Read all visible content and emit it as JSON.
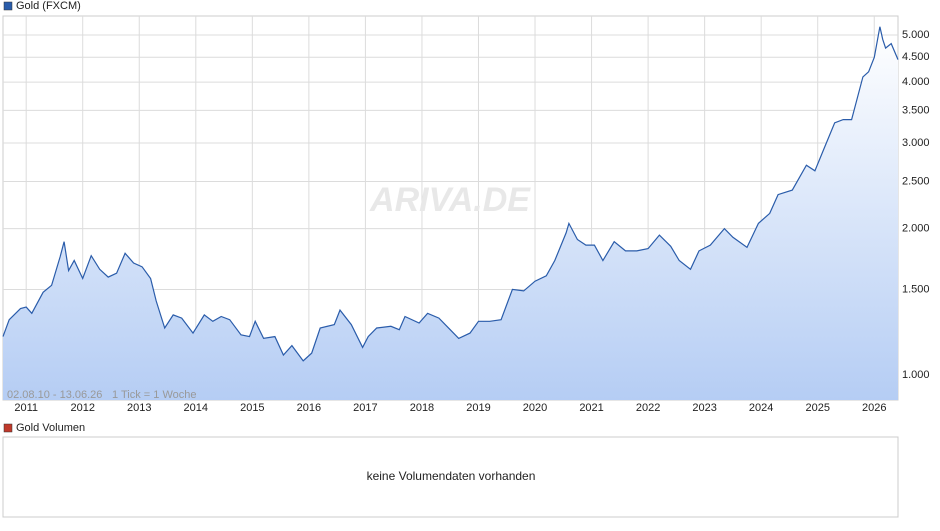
{
  "chart_data": {
    "type": "line",
    "watermark": "ARIVA.DE",
    "range": "02.08.10 - 13.06.26",
    "tick_note": "1 Tick = 1 Woche",
    "log_scale": true,
    "grid": true,
    "xlim": [
      2010.59,
      2026.42
    ],
    "xticks": [
      2011,
      2012,
      2013,
      2014,
      2015,
      2016,
      2017,
      2018,
      2019,
      2020,
      2021,
      2022,
      2023,
      2024,
      2025,
      2026
    ],
    "ylim": [
      889,
      5470
    ],
    "yticks": [
      {
        "value": 1000,
        "label": "1.000"
      },
      {
        "value": 1500,
        "label": "1.500"
      },
      {
        "value": 2000,
        "label": "2.000"
      },
      {
        "value": 2500,
        "label": "2.500"
      },
      {
        "value": 3000,
        "label": "3.000"
      },
      {
        "value": 3500,
        "label": "3.500"
      },
      {
        "value": 4000,
        "label": "4.000"
      },
      {
        "value": 4500,
        "label": "4.500"
      },
      {
        "value": 5000,
        "label": "5.000"
      }
    ],
    "series": [
      {
        "name": "Gold (FXCM)",
        "color": "#2a5caa",
        "x": [
          2010.59,
          2010.7,
          2010.9,
          2011.0,
          2011.1,
          2011.3,
          2011.45,
          2011.6,
          2011.67,
          2011.75,
          2011.85,
          2012.0,
          2012.15,
          2012.3,
          2012.45,
          2012.6,
          2012.75,
          2012.9,
          2013.05,
          2013.2,
          2013.3,
          2013.45,
          2013.6,
          2013.75,
          2013.95,
          2014.15,
          2014.3,
          2014.45,
          2014.6,
          2014.8,
          2014.95,
          2015.05,
          2015.2,
          2015.4,
          2015.55,
          2015.7,
          2015.9,
          2016.05,
          2016.2,
          2016.45,
          2016.55,
          2016.75,
          2016.95,
          2017.05,
          2017.2,
          2017.45,
          2017.6,
          2017.7,
          2017.95,
          2018.1,
          2018.3,
          2018.5,
          2018.65,
          2018.85,
          2019.0,
          2019.2,
          2019.4,
          2019.6,
          2019.8,
          2020.0,
          2020.2,
          2020.35,
          2020.55,
          2020.6,
          2020.75,
          2020.9,
          2021.05,
          2021.2,
          2021.4,
          2021.6,
          2021.8,
          2022.0,
          2022.2,
          2022.4,
          2022.55,
          2022.75,
          2022.9,
          2023.1,
          2023.35,
          2023.5,
          2023.75,
          2023.95,
          2024.15,
          2024.3,
          2024.55,
          2024.8,
          2024.95,
          2025.1,
          2025.3,
          2025.45,
          2025.6,
          2025.8,
          2025.9,
          2026.0,
          2026.1,
          2026.15,
          2026.2,
          2026.3,
          2026.42
        ],
        "values": [
          1200,
          1300,
          1370,
          1380,
          1340,
          1480,
          1530,
          1750,
          1880,
          1640,
          1720,
          1580,
          1760,
          1650,
          1590,
          1620,
          1780,
          1700,
          1670,
          1580,
          1420,
          1250,
          1330,
          1310,
          1220,
          1330,
          1290,
          1320,
          1300,
          1210,
          1200,
          1290,
          1190,
          1200,
          1100,
          1150,
          1070,
          1110,
          1250,
          1270,
          1360,
          1270,
          1140,
          1200,
          1250,
          1260,
          1240,
          1320,
          1280,
          1340,
          1310,
          1240,
          1190,
          1220,
          1290,
          1290,
          1300,
          1500,
          1490,
          1560,
          1600,
          1720,
          1960,
          2050,
          1900,
          1850,
          1850,
          1720,
          1880,
          1800,
          1800,
          1820,
          1940,
          1840,
          1720,
          1650,
          1800,
          1850,
          2000,
          1920,
          1830,
          2050,
          2150,
          2350,
          2400,
          2700,
          2630,
          2900,
          3300,
          3350,
          3350,
          4100,
          4200,
          4500,
          5200,
          4900,
          4700,
          4800,
          4450
        ]
      }
    ]
  },
  "volume_panel": {
    "legend": "Gold Volumen",
    "color": "#c0392b",
    "message": "keine Volumendaten vorhanden"
  }
}
